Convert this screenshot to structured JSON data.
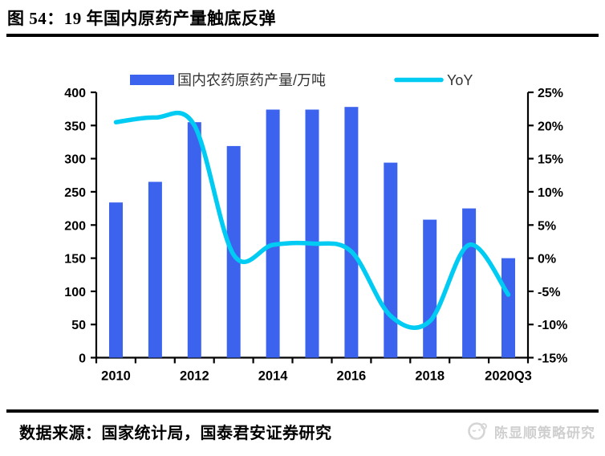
{
  "header": {
    "title": "图 54：19 年国内原药产量触底反弹"
  },
  "footer": {
    "source": "数据来源：国家统计局，国泰君安证券研究",
    "watermark": "陈显顺策略研究"
  },
  "colors": {
    "bar": "#3B63EE",
    "line": "#00CBF2",
    "axis": "#000000",
    "watermark": "#cfcfcf"
  },
  "chart_data": {
    "type": "bar",
    "title": "图 54：19 年国内原药产量触底反弹",
    "categories": [
      "2010",
      "2011",
      "2012",
      "2013",
      "2014",
      "2015",
      "2016",
      "2017",
      "2018",
      "2019",
      "2020Q3"
    ],
    "x_labels_shown": [
      "2010",
      "2012",
      "2014",
      "2016",
      "2018",
      "2020Q3"
    ],
    "series": [
      {
        "name": "国内农药原药产量/万吨",
        "type": "bar",
        "axis": "left",
        "values": [
          234,
          265,
          355,
          319,
          374,
          374,
          378,
          294,
          208,
          225,
          150
        ]
      },
      {
        "name": "YoY",
        "type": "line",
        "axis": "right",
        "values": [
          20.5,
          21.2,
          20.0,
          0.5,
          2.0,
          2.2,
          1.0,
          -8.7,
          -9.5,
          2.0,
          -5.5
        ]
      }
    ],
    "left_axis": {
      "min": 0,
      "max": 400,
      "step": 50,
      "ticks": [
        "0",
        "50",
        "100",
        "150",
        "200",
        "250",
        "300",
        "350",
        "400"
      ]
    },
    "right_axis": {
      "min": -15,
      "max": 25,
      "step": 5,
      "ticks": [
        "-15%",
        "-10%",
        "-5%",
        "0%",
        "5%",
        "10%",
        "15%",
        "20%",
        "25%"
      ]
    },
    "legend_position": "top",
    "grid": false
  }
}
